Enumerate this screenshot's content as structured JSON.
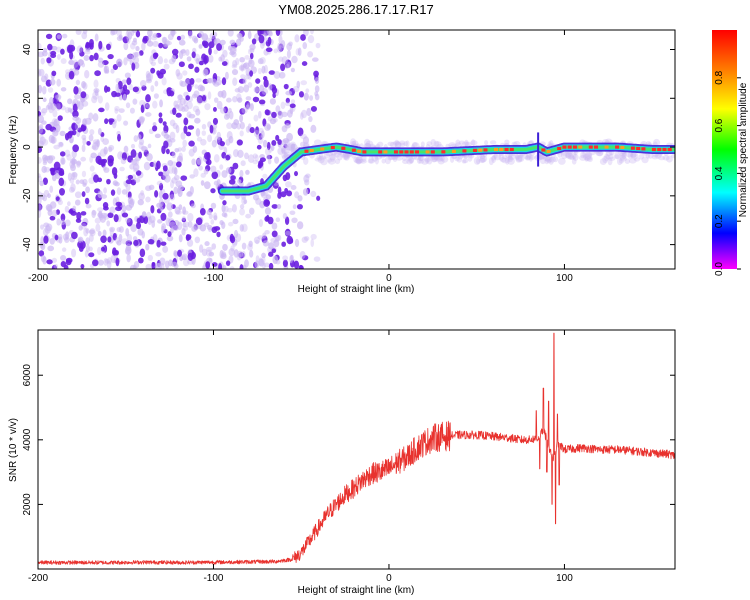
{
  "title": "YM08.2025.286.17.17.R17",
  "colors": {
    "snr_line": "#e8322e",
    "axis": "#000000",
    "scatter_purple": "#6a1fe0",
    "scatter_light": "#c9b4f2"
  },
  "colorbar": {
    "label": "Normalized spectral amplitude",
    "ticks": [
      "0.0",
      "0.2",
      "0.4",
      "0.6",
      "0.8"
    ],
    "tick_values": [
      0.0,
      0.2,
      0.4,
      0.6,
      0.8
    ],
    "range": [
      0,
      1
    ]
  },
  "chart_data": [
    {
      "type": "heatmap",
      "xlabel": "Height of straight line (km)",
      "ylabel": "Frequency (Hz)",
      "xlim": [
        -200,
        163
      ],
      "ylim": [
        -50,
        48
      ],
      "xticks": [
        -200,
        -100,
        0,
        100
      ],
      "yticks": [
        -40,
        -20,
        0,
        20,
        40
      ],
      "ridge": {
        "x": [
          -95,
          -80,
          -70,
          -60,
          -50,
          -40,
          -30,
          -22,
          -15,
          0,
          30,
          60,
          78,
          85,
          90,
          100,
          130,
          150,
          163
        ],
        "y": [
          -18,
          -18,
          -16,
          -8,
          -2,
          -1,
          0,
          -1,
          -2,
          -2,
          -2,
          -1,
          -1,
          0,
          -2,
          0,
          0,
          -1,
          -1
        ]
      },
      "noise_region_x": [
        -200,
        -50
      ]
    },
    {
      "type": "line",
      "xlabel": "Height of straight line (km)",
      "ylabel": "SNR (10 * v/v)",
      "xlim": [
        -200,
        163
      ],
      "ylim": [
        0,
        7400
      ],
      "xticks": [
        -200,
        -100,
        0,
        100
      ],
      "yticks": [
        2000,
        4000,
        6000
      ],
      "series": [
        {
          "x": [
            -200,
            -180,
            -160,
            -140,
            -120,
            -100,
            -80,
            -65,
            -55,
            -50,
            -45,
            -40,
            -35,
            -30,
            -25,
            -20,
            -15,
            -10,
            -5,
            0,
            5,
            10,
            15,
            20,
            25,
            30,
            40,
            50,
            60,
            70,
            75,
            80,
            85,
            88,
            90,
            92,
            94,
            95,
            96,
            98,
            100,
            110,
            120,
            130,
            140,
            150,
            160,
            163
          ],
          "y": [
            200,
            200,
            200,
            210,
            200,
            210,
            220,
            230,
            300,
            500,
            900,
            1300,
            1700,
            2000,
            2300,
            2500,
            2750,
            2950,
            3000,
            3100,
            3300,
            3450,
            3700,
            3900,
            4050,
            4100,
            4150,
            4150,
            4100,
            4050,
            4000,
            4000,
            4050,
            4300,
            4000,
            3600,
            3400,
            3600,
            3900,
            3800,
            3700,
            3750,
            3700,
            3700,
            3650,
            3600,
            3550,
            3500
          ]
        }
      ],
      "spikes": [
        {
          "x": 84,
          "y": 4900
        },
        {
          "x": 86,
          "y": 3100
        },
        {
          "x": 88,
          "y": 5600
        },
        {
          "x": 90,
          "y": 3000
        },
        {
          "x": 91,
          "y": 5200
        },
        {
          "x": 93,
          "y": 2000
        },
        {
          "x": 94,
          "y": 7300
        },
        {
          "x": 95,
          "y": 1400
        },
        {
          "x": 96,
          "y": 4800
        },
        {
          "x": 97,
          "y": 2600
        }
      ]
    }
  ]
}
